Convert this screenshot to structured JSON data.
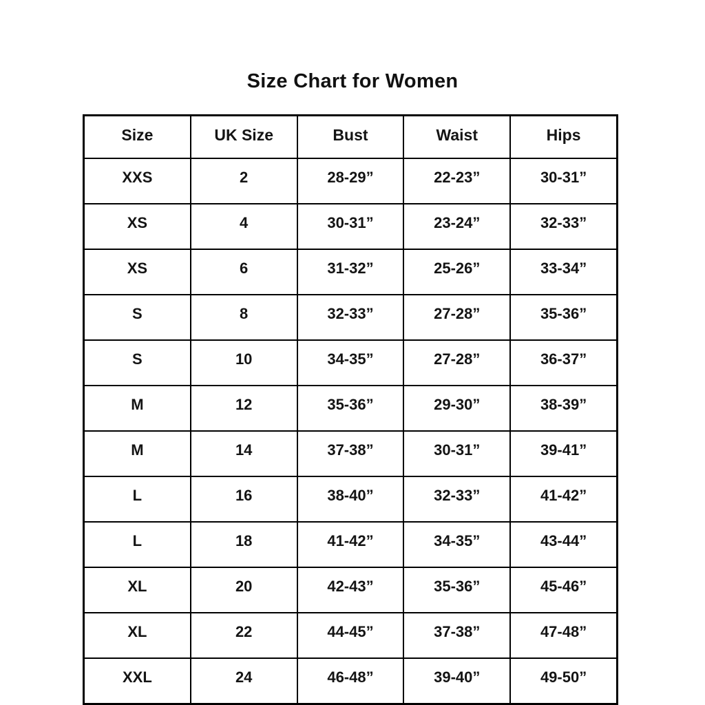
{
  "title": "Size Chart for Women",
  "chart_data": {
    "type": "table",
    "title": "Size Chart for Women",
    "columns": [
      "Size",
      "UK Size",
      "Bust",
      "Waist",
      "Hips"
    ],
    "rows": [
      [
        "XXS",
        "2",
        "28-29”",
        "22-23”",
        "30-31”"
      ],
      [
        "XS",
        "4",
        "30-31”",
        "23-24”",
        "32-33”"
      ],
      [
        "XS",
        "6",
        "31-32”",
        "25-26”",
        "33-34”"
      ],
      [
        "S",
        "8",
        "32-33”",
        "27-28”",
        "35-36”"
      ],
      [
        "S",
        "10",
        "34-35”",
        "27-28”",
        "36-37”"
      ],
      [
        "M",
        "12",
        "35-36”",
        "29-30”",
        "38-39”"
      ],
      [
        "M",
        "14",
        "37-38”",
        "30-31”",
        "39-41”"
      ],
      [
        "L",
        "16",
        "38-40”",
        "32-33”",
        "41-42”"
      ],
      [
        "L",
        "18",
        "41-42”",
        "34-35”",
        "43-44”"
      ],
      [
        "XL",
        "20",
        "42-43”",
        "35-36”",
        "45-46”"
      ],
      [
        "XL",
        "22",
        "44-45”",
        "37-38”",
        "47-48”"
      ],
      [
        "XXL",
        "24",
        "46-48”",
        "39-40”",
        "49-50”"
      ]
    ],
    "layout": {
      "grid": true,
      "border_color": "#000000",
      "text_color": "#141414",
      "background": "#ffffff"
    }
  }
}
